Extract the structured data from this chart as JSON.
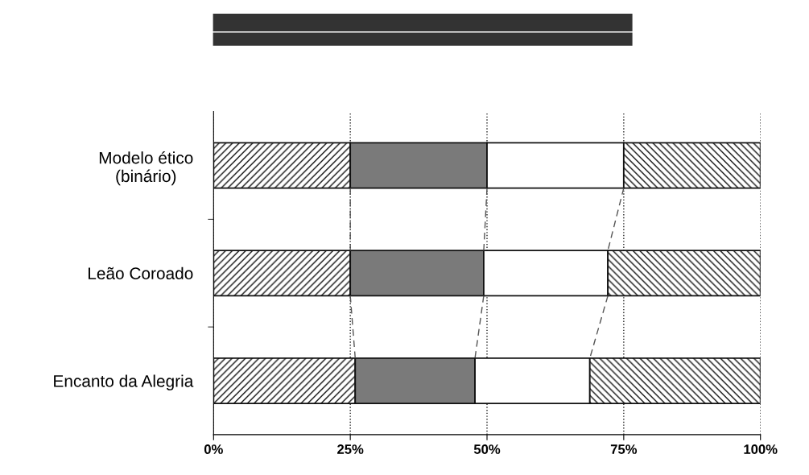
{
  "chart_data": {
    "type": "bar",
    "orientation": "horizontal",
    "stacked": true,
    "categories": [
      "Modelo ético\n(binário)",
      "Leão Coroado",
      "Encanto da Alegria"
    ],
    "series": [
      {
        "color": "#111111",
        "values": [
          25,
          25,
          25.9
        ]
      },
      {
        "color": "#7a7a7a",
        "values": [
          25,
          24.4,
          21.9
        ]
      },
      {
        "color": "#ffffff",
        "values": [
          25,
          22.7,
          21.0
        ]
      },
      {
        "color": "#111111",
        "values": [
          25,
          27.9,
          31.2
        ]
      }
    ],
    "xlim": [
      0,
      100
    ],
    "xticks": [
      {
        "value": 0,
        "label": "0%"
      },
      {
        "value": 25,
        "label": "25%"
      },
      {
        "value": 50,
        "label": "50%"
      },
      {
        "value": 75,
        "label": "75%"
      },
      {
        "value": 100,
        "label": "100%"
      }
    ],
    "grid": "x",
    "legend": false
  }
}
